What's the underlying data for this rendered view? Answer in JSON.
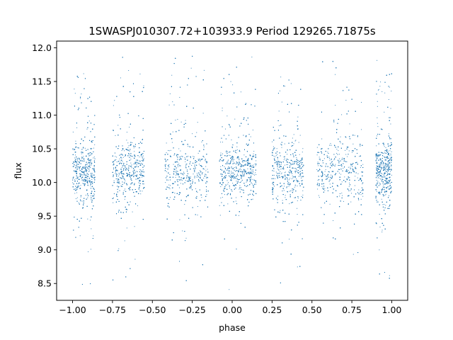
{
  "chart_data": {
    "type": "scatter",
    "title": "1SWASPJ010307.72+103933.9 Period 129265.71875s",
    "xlabel": "phase",
    "ylabel": "flux",
    "xlim": [
      -1.1,
      1.1
    ],
    "ylim": [
      8.25,
      12.1
    ],
    "x_ticks": [
      -1.0,
      -0.75,
      -0.5,
      -0.25,
      0.0,
      0.25,
      0.5,
      0.75,
      1.0
    ],
    "x_tick_labels": [
      "−1.00",
      "−0.75",
      "−0.50",
      "−0.25",
      "0.00",
      "0.25",
      "0.50",
      "0.75",
      "1.00"
    ],
    "y_ticks": [
      8.5,
      9.0,
      9.5,
      10.0,
      10.5,
      11.0,
      11.5,
      12.0
    ],
    "y_tick_labels": [
      "8.5",
      "9.0",
      "9.5",
      "10.0",
      "10.5",
      "11.0",
      "11.5",
      "12.0"
    ],
    "grid": false,
    "marker_color": "#1f77b4",
    "phase_range": [
      -1.0,
      1.0
    ],
    "flux_range": [
      8.4,
      11.9
    ],
    "baseline_flux": 10.15,
    "core_flux_spread": [
      9.6,
      10.7
    ],
    "observation_clusters_phase": [
      [
        -1.0,
        -0.86
      ],
      [
        -0.75,
        -0.55
      ],
      [
        -0.42,
        -0.15
      ],
      [
        -0.08,
        0.15
      ],
      [
        0.25,
        0.45
      ],
      [
        0.53,
        0.82
      ],
      [
        0.9,
        1.0
      ]
    ],
    "upper_tail_max_flux": 11.9,
    "lower_tail_min_flux": 8.4
  }
}
